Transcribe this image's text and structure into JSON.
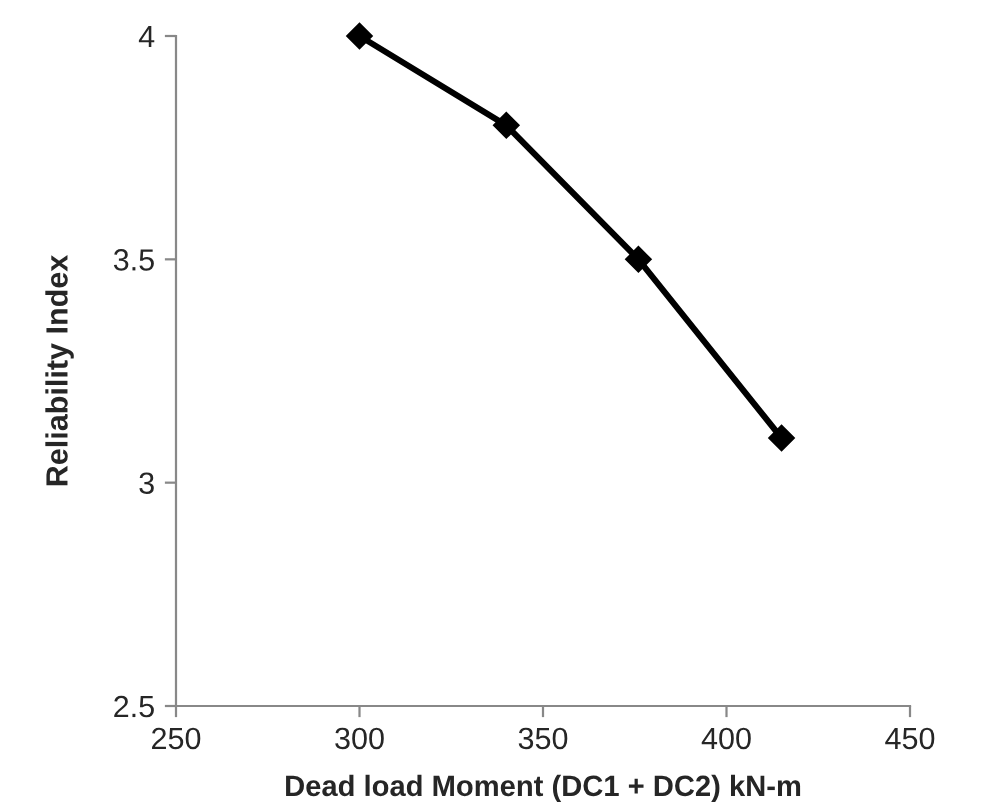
{
  "chart_data": {
    "type": "line",
    "xlabel": "Dead load Moment (DC1 + DC2) kN-m",
    "ylabel": "Reliability Index",
    "x": [
      300,
      340,
      376,
      415
    ],
    "series": [
      {
        "color": "#000000",
        "values": [
          4.0,
          3.8,
          3.5,
          3.1
        ]
      }
    ],
    "xlim": [
      250,
      450
    ],
    "xticks": [
      250,
      300,
      350,
      400,
      450
    ],
    "ylim": [
      2.5,
      4
    ],
    "yticks": [
      2.5,
      3,
      3.5,
      4
    ],
    "marker": "diamond",
    "line_style": "solid",
    "grid": false,
    "legend": false
  }
}
